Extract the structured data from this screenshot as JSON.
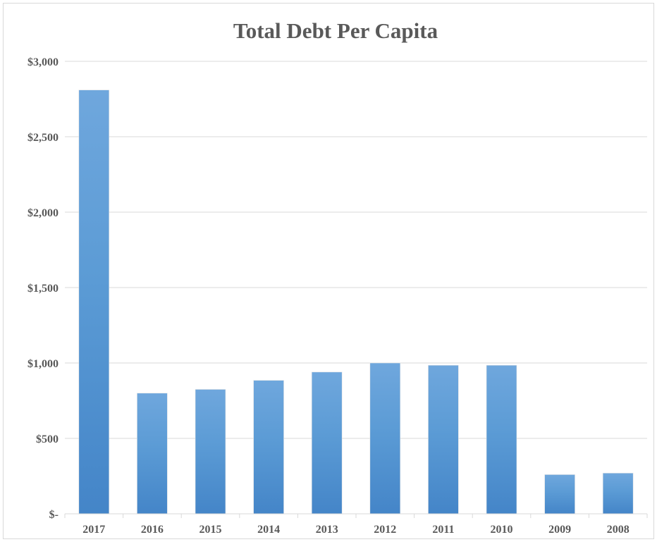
{
  "chart_data": {
    "type": "bar",
    "title": "Total Debt Per Capita",
    "xlabel": "",
    "ylabel": "",
    "categories": [
      "2017",
      "2016",
      "2015",
      "2014",
      "2013",
      "2012",
      "2011",
      "2010",
      "2009",
      "2008"
    ],
    "values": [
      2810,
      800,
      825,
      885,
      940,
      1000,
      985,
      985,
      260,
      270
    ],
    "ylim": [
      0,
      3000
    ],
    "yticks": [
      0,
      500,
      1000,
      1500,
      2000,
      2500,
      3000
    ],
    "ytick_labels": [
      "$-",
      "$500",
      "$1,000",
      "$1,500",
      "$2,000",
      "$2,500",
      "$3,000"
    ],
    "grid": true,
    "legend": "none",
    "colors": {
      "bar_light": "#6fa7dd",
      "bar_mid": "#5b9bd5",
      "bar_dark": "#4485c8",
      "grid": "#d9d9d9",
      "text": "#595959"
    }
  }
}
